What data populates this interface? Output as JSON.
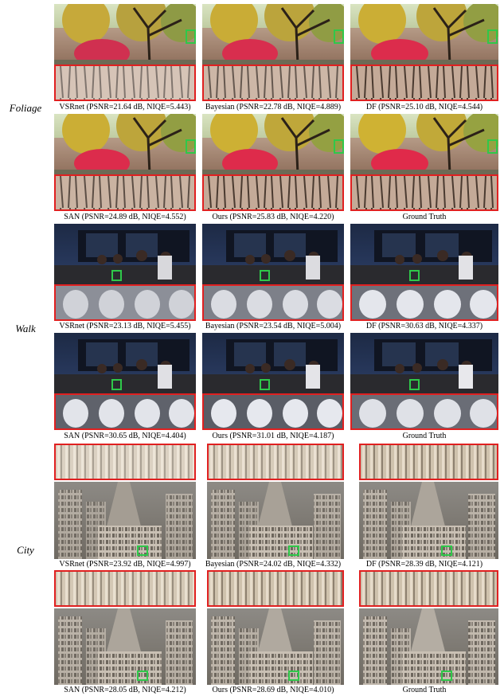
{
  "rows": [
    {
      "label": "Foliage"
    },
    {
      "label": "Walk"
    },
    {
      "label": "City"
    }
  ],
  "captions": {
    "foliage_top": [
      "VSRnet (PSNR=21.64 dB, NIQE=5.443)",
      "Bayesian (PSNR=22.78 dB, NIQE=4.889)",
      "DF (PSNR=25.10 dB, NIQE=4.544)"
    ],
    "foliage_bottom": [
      "SAN (PSNR=24.89 dB, NIQE=4.552)",
      "Ours (PSNR=25.83 dB, NIQE=4.220)",
      "Ground Truth"
    ],
    "walk_top": [
      "VSRnet (PSNR=23.13 dB, NIQE=5.455)",
      "Bayesian (PSNR=23.54 dB, NIQE=5.004)",
      "DF (PSNR=30.63 dB, NIQE=4.337)"
    ],
    "walk_bottom": [
      "SAN (PSNR=30.65 dB, NIQE=4.404)",
      "Ours (PSNR=31.01 dB, NIQE=4.187)",
      "Ground Truth"
    ],
    "city_top": [
      "VSRnet (PSNR=23.92 dB, NIQE=4.997)",
      "Bayesian (PSNR=24.02 dB, NIQE=4.332)",
      "DF (PSNR=28.39 dB, NIQE=4.121)"
    ],
    "city_bottom": [
      "SAN (PSNR=28.05 dB, NIQE=4.212)",
      "Ours (PSNR=28.69 dB, NIQE=4.010)",
      "Ground Truth"
    ]
  },
  "colors": {
    "zoom_border": "#e02020",
    "roi_border": "#2fc84a"
  }
}
